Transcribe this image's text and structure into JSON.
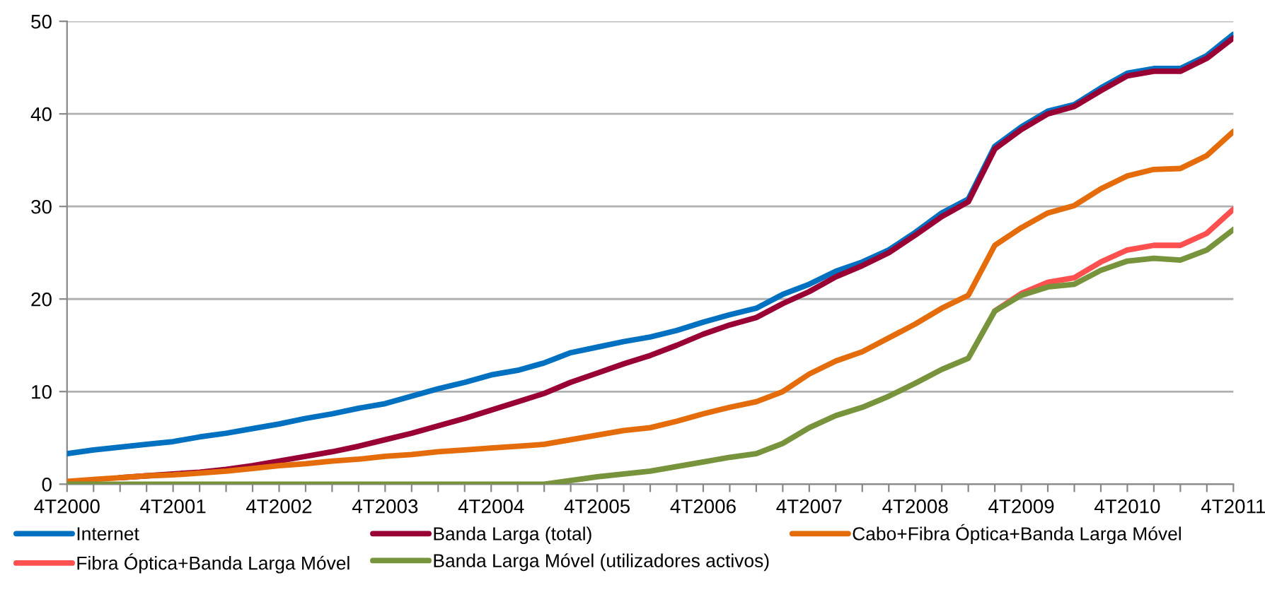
{
  "chart_data": {
    "type": "line",
    "categories": [
      "4T2000",
      null,
      null,
      null,
      "4T2001",
      null,
      null,
      null,
      "4T2002",
      null,
      null,
      null,
      "4T2003",
      null,
      null,
      null,
      "4T2004",
      null,
      null,
      null,
      "4T2005",
      null,
      null,
      null,
      "4T2006",
      null,
      null,
      null,
      "4T2007",
      null,
      null,
      null,
      "4T2008",
      null,
      null,
      null,
      "4T2009",
      null,
      null,
      null,
      "4T2010",
      null,
      null,
      null,
      "4T2011"
    ],
    "ylim": [
      0,
      50
    ],
    "yticks": [
      0,
      10,
      20,
      30,
      40,
      50
    ],
    "grid": "y",
    "legend": "bottom",
    "marker": "none",
    "line_style": "solid",
    "series": [
      {
        "name": "Internet",
        "color": "#0070c0",
        "values": [
          3.3,
          3.7,
          4.0,
          4.3,
          4.6,
          5.1,
          5.5,
          6.0,
          6.5,
          7.1,
          7.6,
          8.2,
          8.7,
          9.5,
          10.3,
          11.0,
          11.8,
          12.3,
          13.1,
          14.2,
          14.8,
          15.4,
          15.9,
          16.6,
          17.5,
          18.3,
          19.0,
          20.5,
          21.6,
          23.0,
          24.0,
          25.3,
          27.2,
          29.3,
          30.8,
          36.5,
          38.6,
          40.3,
          41.0,
          42.8,
          44.4,
          44.9,
          44.9,
          46.3,
          48.6
        ]
      },
      {
        "name": "Banda Larga (total)",
        "color": "#990033",
        "values": [
          null,
          null,
          0.7,
          0.9,
          1.1,
          1.3,
          1.6,
          2.0,
          2.5,
          3.0,
          3.5,
          4.1,
          4.8,
          5.5,
          6.3,
          7.1,
          8.0,
          8.9,
          9.8,
          11.0,
          12.0,
          13.0,
          13.9,
          15.0,
          16.2,
          17.2,
          18.0,
          19.5,
          20.8,
          22.4,
          23.6,
          25.0,
          26.9,
          28.9,
          30.5,
          36.2,
          38.3,
          40.0,
          40.8,
          42.5,
          44.1,
          44.6,
          44.6,
          46.0,
          48.2
        ]
      },
      {
        "name": "Cabo+Fibra Óptica+Banda Larga Móvel",
        "color": "#e46c0a",
        "values": [
          0.3,
          0.5,
          0.7,
          0.9,
          1.0,
          1.2,
          1.4,
          1.7,
          2.0,
          2.2,
          2.5,
          2.7,
          3.0,
          3.2,
          3.5,
          3.7,
          3.9,
          4.1,
          4.3,
          4.8,
          5.3,
          5.8,
          6.1,
          6.8,
          7.6,
          8.3,
          8.9,
          10.0,
          11.9,
          13.3,
          14.3,
          15.8,
          17.3,
          19.0,
          20.4,
          25.8,
          27.7,
          29.3,
          30.1,
          31.9,
          33.3,
          34.0,
          34.1,
          35.5,
          38.1
        ]
      },
      {
        "name": "Fibra Óptica+Banda Larga Móvel",
        "color": "#ff5050",
        "values": [
          null,
          null,
          null,
          null,
          null,
          null,
          null,
          null,
          null,
          null,
          null,
          null,
          null,
          null,
          null,
          null,
          null,
          null,
          null,
          null,
          null,
          null,
          null,
          null,
          null,
          null,
          null,
          null,
          null,
          null,
          null,
          null,
          null,
          null,
          null,
          18.7,
          20.6,
          21.8,
          22.3,
          24.0,
          25.3,
          25.8,
          25.8,
          27.1,
          29.7
        ]
      },
      {
        "name": "Banda Larga Móvel (utilizadores activos)",
        "color": "#77933c",
        "values": [
          0,
          0,
          0,
          0,
          0,
          0,
          0,
          0,
          0,
          0,
          0,
          0,
          0,
          0,
          0,
          0,
          0,
          0,
          0,
          0.4,
          0.8,
          1.1,
          1.4,
          1.9,
          2.4,
          2.9,
          3.3,
          4.4,
          6.1,
          7.4,
          8.3,
          9.5,
          10.9,
          12.4,
          13.6,
          18.7,
          20.4,
          21.3,
          21.6,
          23.1,
          24.1,
          24.4,
          24.2,
          25.3,
          27.5
        ]
      }
    ]
  }
}
